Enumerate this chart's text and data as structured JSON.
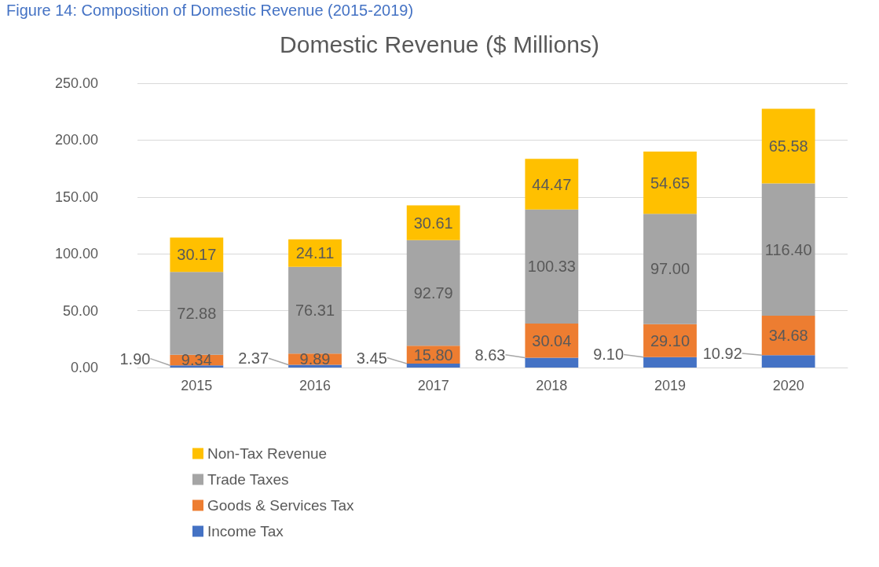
{
  "chart_data": {
    "type": "bar",
    "title": "Domestic Revenue ($ Millions)",
    "annotations": [
      "Figure 14: Composition of Domestic Revenue (2015-2019)"
    ],
    "categories": [
      "2015",
      "2016",
      "2017",
      "2018",
      "2019",
      "2020"
    ],
    "stacked": true,
    "series": [
      {
        "name": "Income Tax",
        "color": "#4472c4",
        "values": [
          1.9,
          2.37,
          3.45,
          8.63,
          9.1,
          10.92
        ],
        "value_labels": [
          "1.90",
          "2.37",
          "3.45",
          "8.63",
          "9.10",
          "10.92"
        ]
      },
      {
        "name": "Goods & Services Tax",
        "color": "#ed7d31",
        "values": [
          9.34,
          9.89,
          15.8,
          30.04,
          29.1,
          34.68
        ],
        "value_labels": [
          "9.34",
          "9.89",
          "15.80",
          "30.04",
          "29.10",
          "34.68"
        ]
      },
      {
        "name": "Trade Taxes",
        "color": "#a5a5a5",
        "values": [
          72.88,
          76.31,
          92.79,
          100.33,
          97.0,
          116.4
        ],
        "value_labels": [
          "72.88",
          "76.31",
          "92.79",
          "100.33",
          "97.00",
          "116.40"
        ]
      },
      {
        "name": "Non-Tax Revenue",
        "color": "#ffc000",
        "values": [
          30.17,
          24.11,
          30.61,
          44.47,
          54.65,
          65.58
        ],
        "value_labels": [
          "30.17",
          "24.11",
          "30.61",
          "44.47",
          "54.65",
          "65.58"
        ]
      }
    ],
    "ylim": [
      0,
      250
    ],
    "yticks": [
      {
        "value": 0,
        "label": "0.00"
      },
      {
        "value": 50,
        "label": "50.00"
      },
      {
        "value": 100,
        "label": "100.00"
      },
      {
        "value": 150,
        "label": "150.00"
      },
      {
        "value": 200,
        "label": "200.00"
      },
      {
        "value": 250,
        "label": "250.00"
      }
    ],
    "grid": "y",
    "legend": "bottom left"
  }
}
